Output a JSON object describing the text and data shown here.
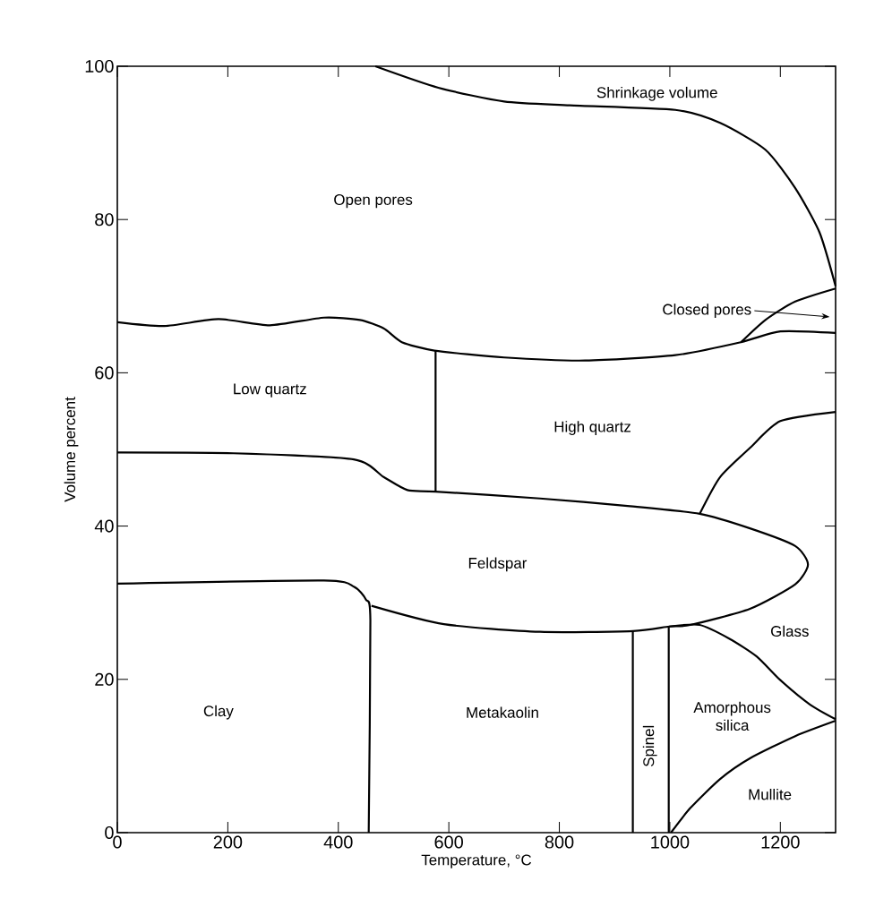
{
  "chart_data": {
    "type": "line",
    "xlabel": "Temperature, °C",
    "ylabel": "Volume percent",
    "xlim": [
      0,
      1300
    ],
    "ylim": [
      0,
      100
    ],
    "xticks": [
      0,
      200,
      400,
      600,
      800,
      1000,
      1200
    ],
    "yticks": [
      0,
      20,
      40,
      60,
      80,
      100
    ],
    "grid": false,
    "marker": "none",
    "line_style": "solid",
    "series": [
      {
        "color": "#000000",
        "x": [
          467,
          581,
          700,
          819,
          1010,
          1091,
          1173,
          1227,
          1271,
          1300
        ],
        "values": [
          100,
          97.2,
          95.4,
          94.9,
          94.3,
          92.6,
          89.1,
          84.1,
          78.3,
          71.3
        ]
      },
      {
        "color": "#000000",
        "x": [
          1129,
          1173,
          1227,
          1300
        ],
        "values": [
          64.0,
          66.9,
          69.3,
          71.0
        ]
      },
      {
        "color": "#000000",
        "x": [
          0,
          85,
          183,
          276,
          374,
          439,
          482,
          515,
          574,
          700,
          847,
          1010,
          1129,
          1200,
          1300
        ],
        "values": [
          66.6,
          66.1,
          67.0,
          66.2,
          67.2,
          66.9,
          65.8,
          64.0,
          62.9,
          62.0,
          61.6,
          62.3,
          64.0,
          65.4,
          65.2
        ]
      },
      {
        "color": "#000000",
        "x": [
          576,
          576
        ],
        "values": [
          62.9,
          44.5
        ]
      },
      {
        "color": "#000000",
        "x": [
          0,
          210,
          428,
          482,
          525,
          576,
          765,
          928,
          1054,
          1145,
          1227,
          1250,
          1227,
          1145,
          1037,
          999,
          933,
          765,
          591,
          460
        ],
        "values": [
          49.6,
          49.5,
          48.7,
          46.4,
          44.7,
          44.5,
          43.6,
          42.6,
          41.6,
          39.7,
          37.4,
          35.0,
          32.4,
          29.2,
          27.1,
          26.9,
          26.3,
          26.2,
          27.2,
          29.6
        ]
      },
      {
        "color": "#000000",
        "x": [
          0,
          374,
          428,
          450,
          458,
          455
        ],
        "values": [
          32.5,
          32.9,
          32.1,
          30.4,
          27.7,
          0
        ]
      },
      {
        "color": "#000000",
        "x": [
          933,
          933
        ],
        "values": [
          26.3,
          0
        ]
      },
      {
        "color": "#000000",
        "x": [
          998,
          998
        ],
        "values": [
          26.9,
          0
        ]
      },
      {
        "color": "#000000",
        "x": [
          999,
          1054,
          1108,
          1157,
          1200,
          1254,
          1300
        ],
        "values": [
          26.9,
          27.1,
          25.3,
          23.0,
          19.9,
          16.7,
          14.8
        ]
      },
      {
        "color": "#000000",
        "x": [
          1002,
          1037,
          1091,
          1145,
          1227,
          1300
        ],
        "values": [
          0,
          3.2,
          7.0,
          9.7,
          12.6,
          14.6
        ]
      },
      {
        "color": "#000000",
        "x": [
          1054,
          1091,
          1145,
          1200,
          1300
        ],
        "values": [
          41.6,
          46.4,
          50.2,
          53.7,
          54.9
        ]
      }
    ],
    "annotations": [
      "Open pores",
      "Shrinkage volume",
      "Closed pores",
      "Low quartz",
      "High quartz",
      "Feldspar",
      "Clay",
      "Metakaolin",
      "Spinel",
      "Amorphous silica",
      "Glass",
      "Mullite"
    ]
  }
}
